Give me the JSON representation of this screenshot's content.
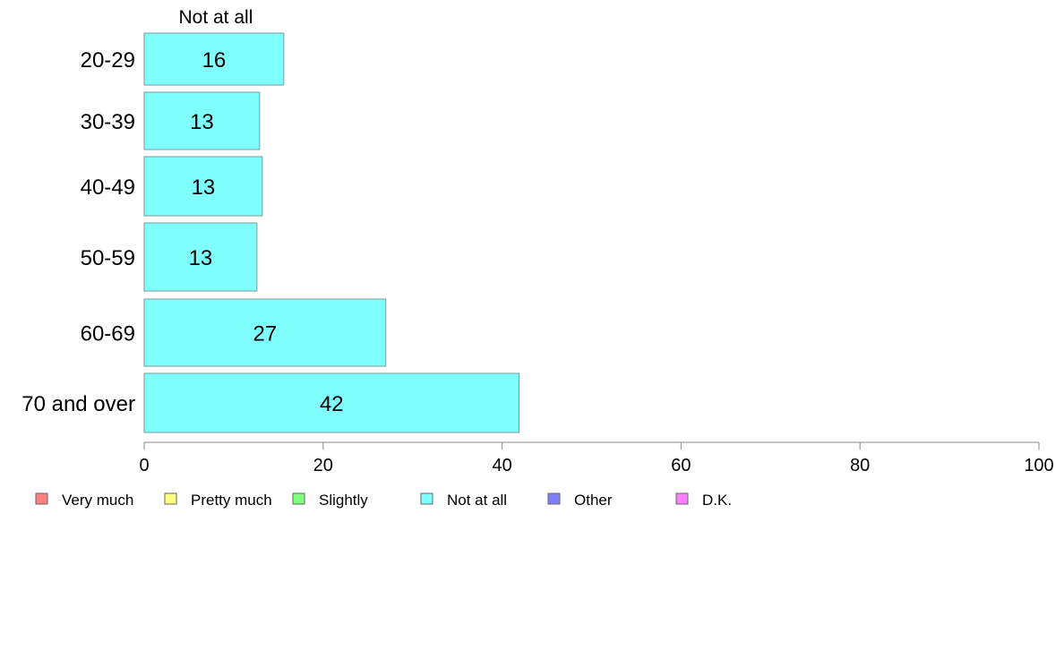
{
  "chart_data": {
    "type": "bar",
    "orientation": "horizontal",
    "stacked": true,
    "column_title": "Not at all",
    "categories": [
      "20-29",
      "30-39",
      "40-49",
      "50-59",
      "60-69",
      "70 and over"
    ],
    "series": [
      {
        "name": "Not at all",
        "color": "#80ffff",
        "values": [
          15.6,
          12.9,
          13.2,
          12.6,
          27.0,
          41.9
        ]
      }
    ],
    "data_labels": [
      "16",
      "13",
      "13",
      "13",
      "27",
      "42"
    ],
    "xlim": [
      0,
      100
    ],
    "xticks": [
      "0",
      "20",
      "40",
      "60",
      "80",
      "100"
    ],
    "legend": {
      "placement": "bottom-left",
      "entries": [
        {
          "label": "Very much",
          "color": "#ff8080"
        },
        {
          "label": "Pretty much",
          "color": "#ffff80"
        },
        {
          "label": "Slightly",
          "color": "#80ff80"
        },
        {
          "label": "Not at all",
          "color": "#80ffff"
        },
        {
          "label": "Other",
          "color": "#8080ff"
        },
        {
          "label": "D.K.",
          "color": "#ff80ff"
        }
      ]
    },
    "grid": false
  }
}
